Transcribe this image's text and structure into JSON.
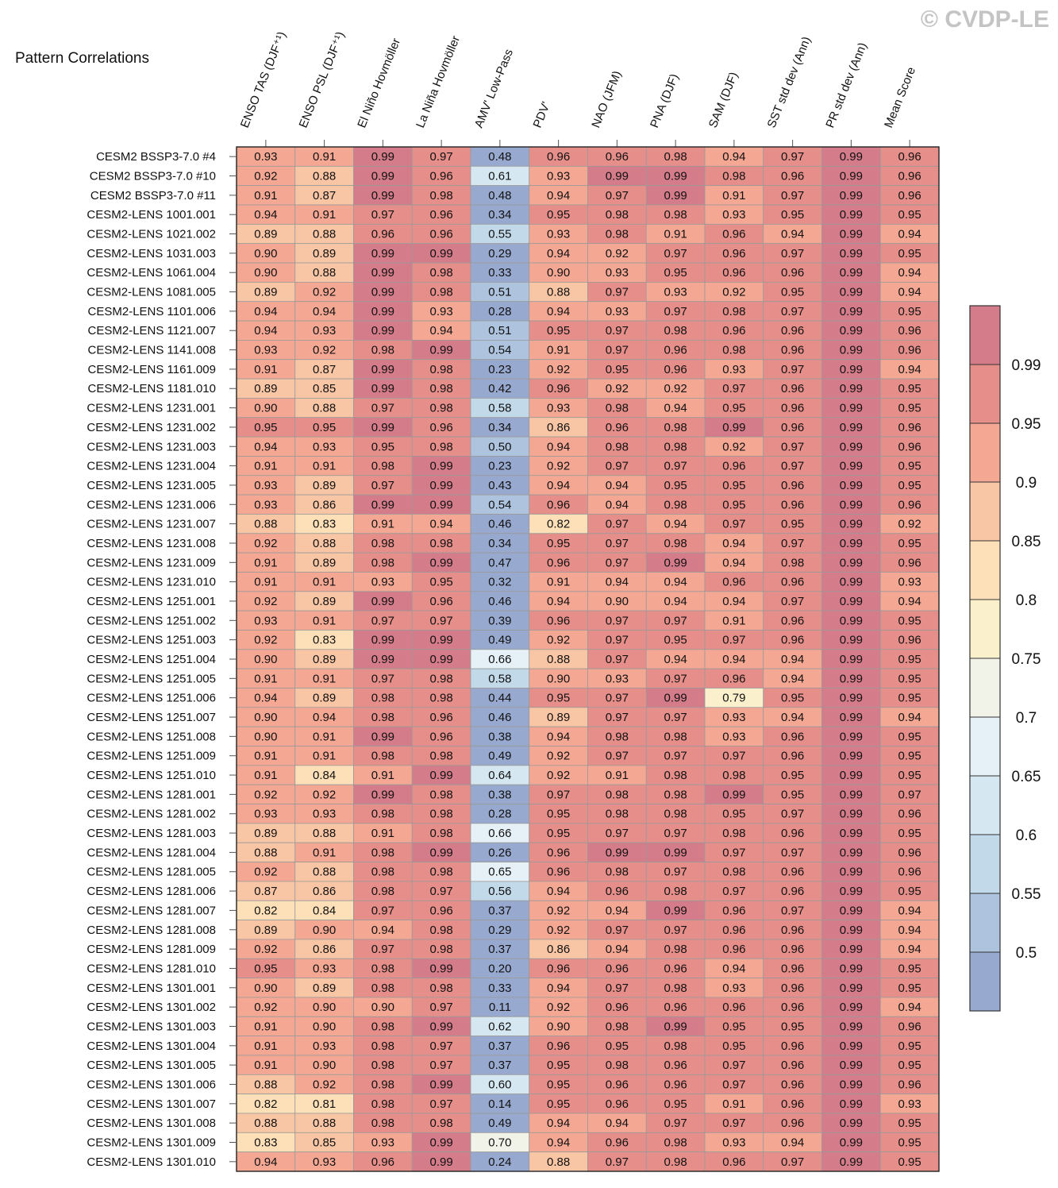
{
  "chart_data": {
    "type": "heatmap",
    "title": "Pattern Correlations",
    "watermark": "© CVDP-LE",
    "columns": [
      "ENSO TAS (DJF⁺¹)",
      "ENSO PSL (DJF⁺¹)",
      "El Niño Hovmöller",
      "La Niña Hovmöller",
      "AMV' Low-Pass",
      "PDV'",
      "NAO (JFM)",
      "PNA (DJF)",
      "SAM (DJF)",
      "SST std dev (Ann)",
      "PR std dev (Ann)",
      "Mean Score"
    ],
    "rows": [
      {
        "label": "CESM2 BSSP3-7.0 #4",
        "values": [
          0.93,
          0.91,
          0.99,
          0.97,
          0.48,
          0.96,
          0.96,
          0.98,
          0.94,
          0.97,
          0.99,
          0.96
        ]
      },
      {
        "label": "CESM2 BSSP3-7.0 #10",
        "values": [
          0.92,
          0.88,
          0.99,
          0.96,
          0.61,
          0.93,
          0.99,
          0.99,
          0.98,
          0.96,
          0.99,
          0.96
        ]
      },
      {
        "label": "CESM2 BSSP3-7.0 #11",
        "values": [
          0.91,
          0.87,
          0.99,
          0.98,
          0.48,
          0.94,
          0.97,
          0.99,
          0.91,
          0.97,
          0.99,
          0.96
        ]
      },
      {
        "label": "CESM2-LENS 1001.001",
        "values": [
          0.94,
          0.91,
          0.97,
          0.96,
          0.34,
          0.95,
          0.98,
          0.98,
          0.93,
          0.95,
          0.99,
          0.95
        ]
      },
      {
        "label": "CESM2-LENS 1021.002",
        "values": [
          0.89,
          0.88,
          0.96,
          0.96,
          0.55,
          0.93,
          0.98,
          0.91,
          0.96,
          0.94,
          0.99,
          0.94
        ]
      },
      {
        "label": "CESM2-LENS 1031.003",
        "values": [
          0.9,
          0.89,
          0.99,
          0.99,
          0.29,
          0.94,
          0.92,
          0.97,
          0.96,
          0.97,
          0.99,
          0.95
        ]
      },
      {
        "label": "CESM2-LENS 1061.004",
        "values": [
          0.9,
          0.88,
          0.99,
          0.98,
          0.33,
          0.9,
          0.93,
          0.95,
          0.96,
          0.96,
          0.99,
          0.94
        ]
      },
      {
        "label": "CESM2-LENS 1081.005",
        "values": [
          0.89,
          0.92,
          0.99,
          0.98,
          0.51,
          0.88,
          0.97,
          0.93,
          0.92,
          0.95,
          0.99,
          0.94
        ]
      },
      {
        "label": "CESM2-LENS 1101.006",
        "values": [
          0.94,
          0.94,
          0.99,
          0.93,
          0.28,
          0.94,
          0.93,
          0.97,
          0.98,
          0.97,
          0.99,
          0.95
        ]
      },
      {
        "label": "CESM2-LENS 1121.007",
        "values": [
          0.94,
          0.93,
          0.99,
          0.94,
          0.51,
          0.95,
          0.97,
          0.98,
          0.96,
          0.96,
          0.99,
          0.96
        ]
      },
      {
        "label": "CESM2-LENS 1141.008",
        "values": [
          0.93,
          0.92,
          0.98,
          0.99,
          0.54,
          0.91,
          0.97,
          0.96,
          0.98,
          0.96,
          0.99,
          0.96
        ]
      },
      {
        "label": "CESM2-LENS 1161.009",
        "values": [
          0.91,
          0.87,
          0.99,
          0.98,
          0.23,
          0.92,
          0.95,
          0.96,
          0.93,
          0.97,
          0.99,
          0.94
        ]
      },
      {
        "label": "CESM2-LENS 1181.010",
        "values": [
          0.89,
          0.85,
          0.99,
          0.98,
          0.42,
          0.96,
          0.92,
          0.92,
          0.97,
          0.96,
          0.99,
          0.95
        ]
      },
      {
        "label": "CESM2-LENS 1231.001",
        "values": [
          0.9,
          0.88,
          0.97,
          0.98,
          0.58,
          0.93,
          0.98,
          0.94,
          0.95,
          0.96,
          0.99,
          0.95
        ]
      },
      {
        "label": "CESM2-LENS 1231.002",
        "values": [
          0.95,
          0.95,
          0.99,
          0.96,
          0.34,
          0.86,
          0.96,
          0.98,
          0.99,
          0.96,
          0.99,
          0.96
        ]
      },
      {
        "label": "CESM2-LENS 1231.003",
        "values": [
          0.94,
          0.93,
          0.95,
          0.98,
          0.5,
          0.94,
          0.98,
          0.98,
          0.92,
          0.97,
          0.99,
          0.96
        ]
      },
      {
        "label": "CESM2-LENS 1231.004",
        "values": [
          0.91,
          0.91,
          0.98,
          0.99,
          0.23,
          0.92,
          0.97,
          0.97,
          0.96,
          0.97,
          0.99,
          0.95
        ]
      },
      {
        "label": "CESM2-LENS 1231.005",
        "values": [
          0.93,
          0.89,
          0.97,
          0.99,
          0.43,
          0.94,
          0.94,
          0.95,
          0.95,
          0.96,
          0.99,
          0.95
        ]
      },
      {
        "label": "CESM2-LENS 1231.006",
        "values": [
          0.93,
          0.86,
          0.99,
          0.99,
          0.54,
          0.96,
          0.94,
          0.98,
          0.95,
          0.96,
          0.99,
          0.96
        ]
      },
      {
        "label": "CESM2-LENS 1231.007",
        "values": [
          0.88,
          0.83,
          0.91,
          0.94,
          0.46,
          0.82,
          0.97,
          0.94,
          0.97,
          0.95,
          0.99,
          0.92
        ]
      },
      {
        "label": "CESM2-LENS 1231.008",
        "values": [
          0.92,
          0.88,
          0.98,
          0.98,
          0.34,
          0.95,
          0.97,
          0.98,
          0.94,
          0.97,
          0.99,
          0.95
        ]
      },
      {
        "label": "CESM2-LENS 1231.009",
        "values": [
          0.91,
          0.89,
          0.98,
          0.99,
          0.47,
          0.96,
          0.97,
          0.99,
          0.94,
          0.98,
          0.99,
          0.96
        ]
      },
      {
        "label": "CESM2-LENS 1231.010",
        "values": [
          0.91,
          0.91,
          0.93,
          0.95,
          0.32,
          0.91,
          0.94,
          0.94,
          0.96,
          0.96,
          0.99,
          0.93
        ]
      },
      {
        "label": "CESM2-LENS 1251.001",
        "values": [
          0.92,
          0.89,
          0.99,
          0.96,
          0.46,
          0.94,
          0.9,
          0.94,
          0.94,
          0.97,
          0.99,
          0.94
        ]
      },
      {
        "label": "CESM2-LENS 1251.002",
        "values": [
          0.93,
          0.91,
          0.97,
          0.97,
          0.39,
          0.96,
          0.97,
          0.97,
          0.91,
          0.96,
          0.99,
          0.95
        ]
      },
      {
        "label": "CESM2-LENS 1251.003",
        "values": [
          0.92,
          0.83,
          0.99,
          0.99,
          0.49,
          0.92,
          0.97,
          0.95,
          0.97,
          0.96,
          0.99,
          0.96
        ]
      },
      {
        "label": "CESM2-LENS 1251.004",
        "values": [
          0.9,
          0.89,
          0.99,
          0.99,
          0.66,
          0.88,
          0.97,
          0.94,
          0.94,
          0.94,
          0.99,
          0.95
        ]
      },
      {
        "label": "CESM2-LENS 1251.005",
        "values": [
          0.91,
          0.91,
          0.97,
          0.98,
          0.58,
          0.9,
          0.93,
          0.97,
          0.96,
          0.94,
          0.99,
          0.95
        ]
      },
      {
        "label": "CESM2-LENS 1251.006",
        "values": [
          0.94,
          0.89,
          0.98,
          0.98,
          0.44,
          0.95,
          0.97,
          0.99,
          0.79,
          0.95,
          0.99,
          0.95
        ]
      },
      {
        "label": "CESM2-LENS 1251.007",
        "values": [
          0.9,
          0.94,
          0.98,
          0.96,
          0.46,
          0.89,
          0.97,
          0.97,
          0.93,
          0.94,
          0.99,
          0.94
        ]
      },
      {
        "label": "CESM2-LENS 1251.008",
        "values": [
          0.9,
          0.91,
          0.99,
          0.96,
          0.38,
          0.94,
          0.98,
          0.98,
          0.93,
          0.96,
          0.99,
          0.95
        ]
      },
      {
        "label": "CESM2-LENS 1251.009",
        "values": [
          0.91,
          0.91,
          0.98,
          0.98,
          0.49,
          0.92,
          0.97,
          0.97,
          0.97,
          0.96,
          0.99,
          0.95
        ]
      },
      {
        "label": "CESM2-LENS 1251.010",
        "values": [
          0.91,
          0.84,
          0.91,
          0.99,
          0.64,
          0.92,
          0.91,
          0.98,
          0.98,
          0.95,
          0.99,
          0.95
        ]
      },
      {
        "label": "CESM2-LENS 1281.001",
        "values": [
          0.92,
          0.92,
          0.99,
          0.98,
          0.38,
          0.97,
          0.98,
          0.98,
          0.99,
          0.95,
          0.99,
          0.97
        ]
      },
      {
        "label": "CESM2-LENS 1281.002",
        "values": [
          0.93,
          0.93,
          0.98,
          0.98,
          0.28,
          0.95,
          0.98,
          0.98,
          0.95,
          0.97,
          0.99,
          0.96
        ]
      },
      {
        "label": "CESM2-LENS 1281.003",
        "values": [
          0.89,
          0.88,
          0.91,
          0.98,
          0.66,
          0.95,
          0.97,
          0.97,
          0.98,
          0.96,
          0.99,
          0.95
        ]
      },
      {
        "label": "CESM2-LENS 1281.004",
        "values": [
          0.88,
          0.91,
          0.98,
          0.99,
          0.26,
          0.96,
          0.99,
          0.99,
          0.97,
          0.97,
          0.99,
          0.96
        ]
      },
      {
        "label": "CESM2-LENS 1281.005",
        "values": [
          0.92,
          0.88,
          0.98,
          0.98,
          0.65,
          0.96,
          0.98,
          0.97,
          0.98,
          0.96,
          0.99,
          0.96
        ]
      },
      {
        "label": "CESM2-LENS 1281.006",
        "values": [
          0.87,
          0.86,
          0.98,
          0.97,
          0.56,
          0.94,
          0.96,
          0.98,
          0.97,
          0.96,
          0.99,
          0.95
        ]
      },
      {
        "label": "CESM2-LENS 1281.007",
        "values": [
          0.82,
          0.84,
          0.97,
          0.96,
          0.37,
          0.92,
          0.94,
          0.99,
          0.96,
          0.97,
          0.99,
          0.94
        ]
      },
      {
        "label": "CESM2-LENS 1281.008",
        "values": [
          0.89,
          0.9,
          0.94,
          0.98,
          0.29,
          0.92,
          0.97,
          0.97,
          0.96,
          0.96,
          0.99,
          0.94
        ]
      },
      {
        "label": "CESM2-LENS 1281.009",
        "values": [
          0.92,
          0.86,
          0.97,
          0.98,
          0.37,
          0.86,
          0.94,
          0.98,
          0.96,
          0.96,
          0.99,
          0.94
        ]
      },
      {
        "label": "CESM2-LENS 1281.010",
        "values": [
          0.95,
          0.93,
          0.98,
          0.99,
          0.2,
          0.96,
          0.96,
          0.96,
          0.94,
          0.96,
          0.99,
          0.95
        ]
      },
      {
        "label": "CESM2-LENS 1301.001",
        "values": [
          0.9,
          0.89,
          0.98,
          0.98,
          0.33,
          0.94,
          0.97,
          0.98,
          0.93,
          0.96,
          0.99,
          0.95
        ]
      },
      {
        "label": "CESM2-LENS 1301.002",
        "values": [
          0.92,
          0.9,
          0.9,
          0.97,
          0.11,
          0.92,
          0.96,
          0.96,
          0.96,
          0.96,
          0.99,
          0.94
        ]
      },
      {
        "label": "CESM2-LENS 1301.003",
        "values": [
          0.91,
          0.9,
          0.98,
          0.99,
          0.62,
          0.9,
          0.98,
          0.99,
          0.95,
          0.95,
          0.99,
          0.96
        ]
      },
      {
        "label": "CESM2-LENS 1301.004",
        "values": [
          0.91,
          0.93,
          0.98,
          0.97,
          0.37,
          0.96,
          0.95,
          0.98,
          0.95,
          0.96,
          0.99,
          0.95
        ]
      },
      {
        "label": "CESM2-LENS 1301.005",
        "values": [
          0.91,
          0.9,
          0.98,
          0.97,
          0.37,
          0.95,
          0.98,
          0.96,
          0.97,
          0.96,
          0.99,
          0.95
        ]
      },
      {
        "label": "CESM2-LENS 1301.006",
        "values": [
          0.88,
          0.92,
          0.98,
          0.99,
          0.6,
          0.95,
          0.96,
          0.96,
          0.97,
          0.96,
          0.99,
          0.96
        ]
      },
      {
        "label": "CESM2-LENS 1301.007",
        "values": [
          0.82,
          0.81,
          0.98,
          0.97,
          0.14,
          0.95,
          0.96,
          0.95,
          0.91,
          0.96,
          0.99,
          0.93
        ]
      },
      {
        "label": "CESM2-LENS 1301.008",
        "values": [
          0.88,
          0.88,
          0.98,
          0.98,
          0.49,
          0.94,
          0.94,
          0.97,
          0.97,
          0.96,
          0.99,
          0.95
        ]
      },
      {
        "label": "CESM2-LENS 1301.009",
        "values": [
          0.83,
          0.85,
          0.93,
          0.99,
          0.7,
          0.94,
          0.96,
          0.98,
          0.93,
          0.94,
          0.99,
          0.95
        ]
      },
      {
        "label": "CESM2-LENS 1301.010",
        "values": [
          0.94,
          0.93,
          0.96,
          0.99,
          0.24,
          0.88,
          0.97,
          0.98,
          0.96,
          0.97,
          0.99,
          0.95
        ]
      }
    ],
    "colorbar": {
      "levels": [
        0.5,
        0.55,
        0.6,
        0.65,
        0.7,
        0.75,
        0.8,
        0.85,
        0.9,
        0.95,
        0.99
      ],
      "labels": [
        "0.5",
        "0.55",
        "0.6",
        "0.65",
        "0.7",
        "0.75",
        "0.8",
        "0.85",
        "0.9",
        "0.95",
        "0.99"
      ],
      "colors": [
        "#98a9cf",
        "#adc3de",
        "#c2d9e9",
        "#d5e7f1",
        "#e5f1f6",
        "#f1f2e8",
        "#fbf0cc",
        "#fde0b8",
        "#f9c6a5",
        "#f4a894",
        "#e68f8a",
        "#d47c8a"
      ]
    }
  }
}
